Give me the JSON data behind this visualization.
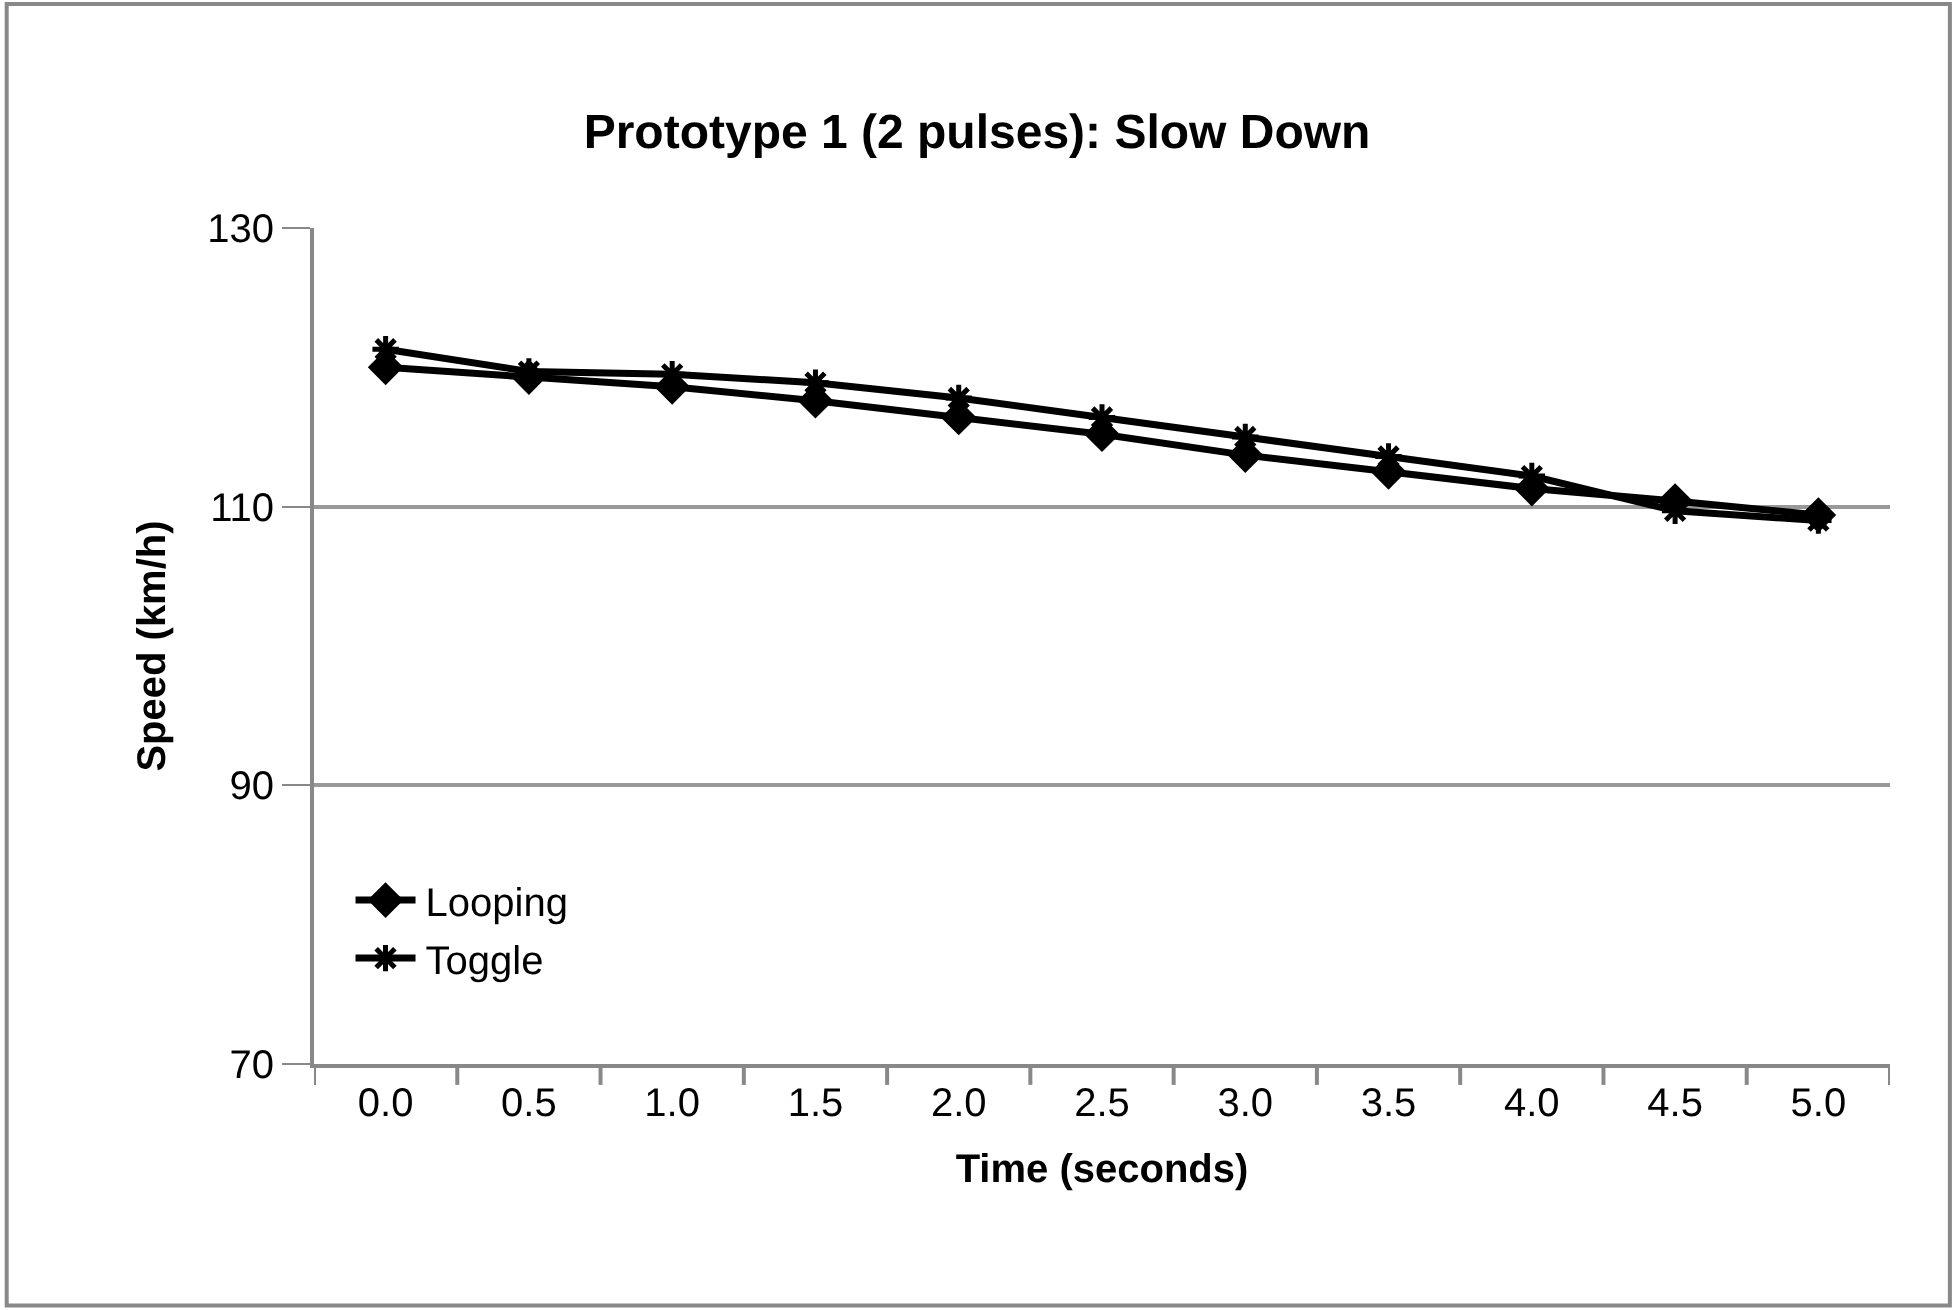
{
  "chart_data": {
    "type": "line",
    "title": "Prototype 1 (2 pulses): Slow Down",
    "xlabel": "Time (seconds)",
    "ylabel": "Speed (km/h)",
    "categories": [
      "0.0",
      "0.5",
      "1.0",
      "1.5",
      "2.0",
      "2.5",
      "3.0",
      "3.5",
      "4.0",
      "4.5",
      "5.0"
    ],
    "series": [
      {
        "name": "Looping",
        "color": "#000000",
        "marker": "diamond",
        "values": [
          120.0,
          119.3,
          118.6,
          117.6,
          116.4,
          115.2,
          113.7,
          112.5,
          111.3,
          110.4,
          109.4
        ]
      },
      {
        "name": "Toggle",
        "color": "#000000",
        "marker": "cross",
        "values": [
          121.3,
          119.7,
          119.5,
          118.9,
          117.8,
          116.4,
          115.0,
          113.6,
          112.2,
          109.7,
          109.0
        ]
      }
    ],
    "ylim": [
      70,
      130
    ],
    "yticks": [
      70,
      90,
      110,
      130
    ],
    "grid": "y",
    "legend": "bottom left",
    "line_style": "solid"
  }
}
